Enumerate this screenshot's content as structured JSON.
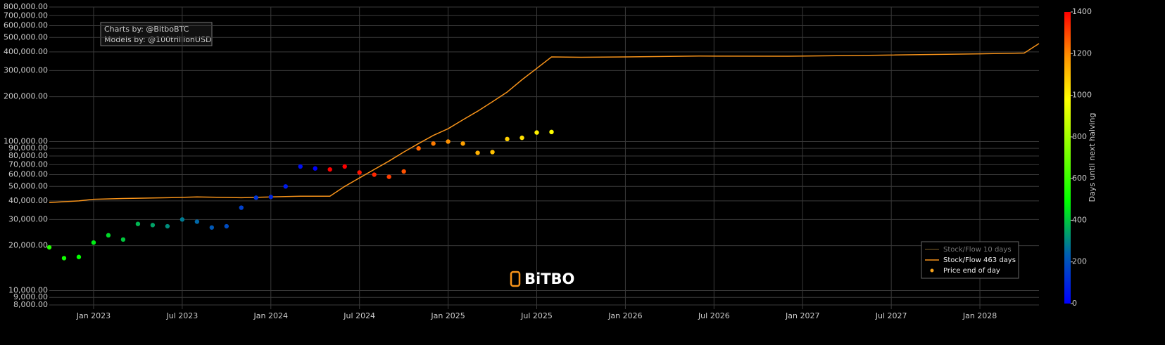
{
  "chart_data": {
    "type": "scatter",
    "annotation": [
      "Charts by: @BitboBTC",
      "Models by: @100trillionUSD"
    ],
    "watermark": "BiTBO",
    "ylog": true,
    "grid": true,
    "ylim": [
      7500,
      800000
    ],
    "yticks": [
      {
        "value": 8000,
        "label": "8,000.00"
      },
      {
        "value": 9000,
        "label": "9,000.00"
      },
      {
        "value": 10000,
        "label": "10,000.00"
      },
      {
        "value": 20000,
        "label": "20,000.00"
      },
      {
        "value": 30000,
        "label": "30,000.00"
      },
      {
        "value": 40000,
        "label": "40,000.00"
      },
      {
        "value": 50000,
        "label": "50,000.00"
      },
      {
        "value": 60000,
        "label": "60,000.00"
      },
      {
        "value": 70000,
        "label": "70,000.00"
      },
      {
        "value": 80000,
        "label": "80,000.00"
      },
      {
        "value": 90000,
        "label": "90,000.00"
      },
      {
        "value": 100000,
        "label": "100,000.00"
      },
      {
        "value": 200000,
        "label": "200,000.00"
      },
      {
        "value": 300000,
        "label": "300,000.00"
      },
      {
        "value": 400000,
        "label": "400,000.00"
      },
      {
        "value": 500000,
        "label": "500,000.00"
      },
      {
        "value": 600000,
        "label": "600,000.00"
      },
      {
        "value": 700000,
        "label": "700,000.00"
      },
      {
        "value": 800000,
        "label": "800,000.00"
      }
    ],
    "xlim": [
      "2022-10",
      "2028-05"
    ],
    "xticks": [
      {
        "value": "2023-01",
        "label": "Jan 2023"
      },
      {
        "value": "2023-07",
        "label": "Jul 2023"
      },
      {
        "value": "2024-01",
        "label": "Jan 2024"
      },
      {
        "value": "2024-07",
        "label": "Jul 2024"
      },
      {
        "value": "2025-01",
        "label": "Jan 2025"
      },
      {
        "value": "2025-07",
        "label": "Jul 2025"
      },
      {
        "value": "2026-01",
        "label": "Jan 2026"
      },
      {
        "value": "2026-07",
        "label": "Jul 2026"
      },
      {
        "value": "2027-01",
        "label": "Jan 2027"
      },
      {
        "value": "2027-07",
        "label": "Jul 2027"
      },
      {
        "value": "2028-01",
        "label": "Jan 2028"
      }
    ],
    "colorbar": {
      "title": "Days until next halving",
      "lim": [
        0,
        1400
      ],
      "ticks": [
        0,
        200,
        400,
        600,
        800,
        1000,
        1200,
        1400
      ],
      "colorscale": [
        [
          0,
          "#0000ff"
        ],
        [
          0.17,
          "#0060b0"
        ],
        [
          0.35,
          "#00ff00"
        ],
        [
          0.7,
          "#ffff00"
        ],
        [
          0.85,
          "#ff9000"
        ],
        [
          1,
          "#ff0000"
        ]
      ]
    },
    "legend": "lower right",
    "series": [
      {
        "name": "Stock/Flow 10 days",
        "color": "#8a6a30",
        "mode": "line",
        "visible": "legendonly"
      },
      {
        "name": "Stock/Flow 463 days",
        "color": "#f7931a",
        "mode": "line",
        "x": [
          "2022-10",
          "2022-12",
          "2023-01",
          "2023-03",
          "2023-06",
          "2023-08",
          "2023-11",
          "2024-01",
          "2024-03",
          "2024-05",
          "2024-06",
          "2024-07",
          "2024-08",
          "2024-09",
          "2024-10",
          "2024-11",
          "2024-12",
          "2025-01",
          "2025-02",
          "2025-03",
          "2025-04",
          "2025-05",
          "2025-06",
          "2025-07",
          "2025-08",
          "2025-10",
          "2026-01",
          "2026-06",
          "2026-12",
          "2027-06",
          "2028-01",
          "2028-04",
          "2028-05"
        ],
        "values": [
          39000,
          40000,
          41000,
          41500,
          42000,
          42500,
          42000,
          42500,
          43000,
          43000,
          50000,
          57000,
          65000,
          74000,
          85000,
          97000,
          110000,
          122000,
          140000,
          160000,
          185000,
          215000,
          260000,
          310000,
          370000,
          368000,
          370000,
          375000,
          374000,
          380000,
          388000,
          393000,
          455000
        ]
      },
      {
        "name": "Price end of day",
        "color": "#f7a21b",
        "mode": "markers",
        "x": [
          "2022-10",
          "2022-11",
          "2022-12",
          "2023-01",
          "2023-02",
          "2023-03",
          "2023-04",
          "2023-05",
          "2023-06",
          "2023-07",
          "2023-08",
          "2023-09",
          "2023-10",
          "2023-11",
          "2023-12",
          "2024-01",
          "2024-02",
          "2024-03",
          "2024-04",
          "2024-05",
          "2024-06",
          "2024-07",
          "2024-08",
          "2024-09",
          "2024-10",
          "2024-11",
          "2024-12",
          "2025-01",
          "2025-02",
          "2025-03",
          "2025-04",
          "2025-05",
          "2025-06",
          "2025-07",
          "2025-08"
        ],
        "values": [
          19500,
          16500,
          16800,
          21000,
          23500,
          22000,
          28000,
          27500,
          27000,
          30000,
          29000,
          26500,
          27000,
          36000,
          42000,
          42500,
          50000,
          68000,
          66000,
          65000,
          68000,
          62000,
          60000,
          58000,
          63000,
          90000,
          97000,
          100000,
          97000,
          84000,
          85000,
          104000,
          106000,
          115000,
          116000
        ],
        "color_values": [
          553,
          523,
          493,
          462,
          431,
          403,
          372,
          342,
          311,
          281,
          250,
          219,
          189,
          158,
          128,
          97,
          66,
          37,
          6,
          1433,
          1402,
          1372,
          1341,
          1310,
          1280,
          1249,
          1219,
          1188,
          1157,
          1129,
          1098,
          1068,
          1037,
          1007,
          976
        ]
      }
    ]
  }
}
